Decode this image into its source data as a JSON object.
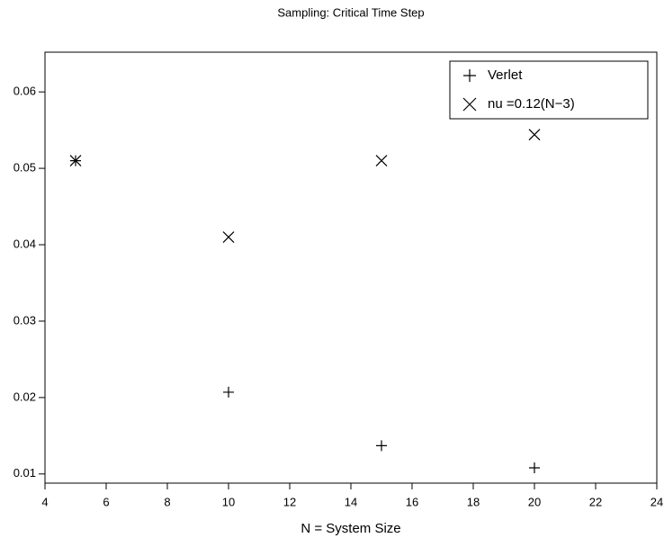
{
  "chart_data": {
    "type": "scatter",
    "title": "Sampling: Critical Time Step",
    "x_label": "N = System Size",
    "xlim": [
      4,
      24
    ],
    "xticks": [
      4,
      6,
      8,
      10,
      12,
      14,
      16,
      18,
      20,
      22,
      24
    ],
    "ylim": [
      0.0088,
      0.0652
    ],
    "yticks": [
      0.01,
      0.02,
      0.03,
      0.04,
      0.05,
      0.06
    ],
    "legend": "upper right",
    "series": [
      {
        "name": "Verlet",
        "color": "#000000",
        "marker": "plus",
        "x": [
          5,
          10,
          15,
          20
        ],
        "values": [
          0.051,
          0.0207,
          0.0137,
          0.0108
        ]
      },
      {
        "name": "nu =0.12(N−3)",
        "color": "#000000",
        "marker": "x",
        "x": [
          5,
          10,
          15,
          20
        ],
        "values": [
          0.051,
          0.041,
          0.051,
          0.0544
        ]
      }
    ]
  }
}
